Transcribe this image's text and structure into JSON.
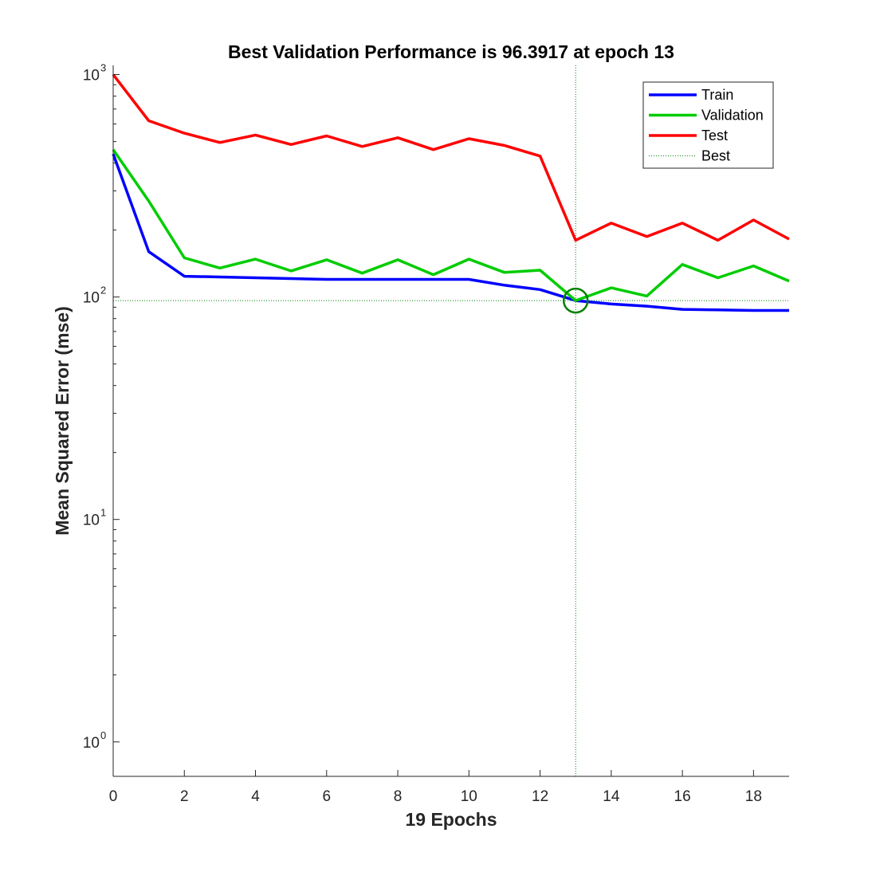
{
  "chart_data": {
    "type": "line",
    "title": "Best Validation Performance is 96.3917 at epoch 13",
    "xlabel": "19 Epochs",
    "ylabel": "Mean Squared Error  (mse)",
    "y_scale": "log",
    "xlim": [
      0,
      19
    ],
    "ylim": [
      0.7,
      1100
    ],
    "x_ticks": [
      0,
      2,
      4,
      6,
      8,
      10,
      12,
      14,
      16,
      18
    ],
    "y_ticks": [
      {
        "value": 1,
        "base": "10",
        "exp": "0"
      },
      {
        "value": 10,
        "base": "10",
        "exp": "1"
      },
      {
        "value": 100,
        "base": "10",
        "exp": "2"
      },
      {
        "value": 1000,
        "base": "10",
        "exp": "3"
      }
    ],
    "grid": false,
    "legend_position": "top-right",
    "x": [
      0,
      1,
      2,
      3,
      4,
      5,
      6,
      7,
      8,
      9,
      10,
      11,
      12,
      13,
      14,
      15,
      16,
      17,
      18,
      19
    ],
    "series": [
      {
        "name": "Train",
        "color": "#0000ff",
        "values": [
          440,
          160,
          124,
          123,
          122,
          121,
          120,
          120,
          120,
          120,
          120,
          113,
          108,
          96.4,
          93,
          91,
          88,
          87.5,
          87,
          87
        ]
      },
      {
        "name": "Validation",
        "color": "#00cc00",
        "values": [
          460,
          270,
          150,
          135,
          148,
          131,
          147,
          128,
          147,
          126,
          148,
          129,
          132,
          96.39,
          110,
          101,
          140,
          122,
          138,
          118
        ]
      },
      {
        "name": "Test",
        "color": "#ff0000",
        "values": [
          1000,
          620,
          545,
          495,
          535,
          485,
          530,
          475,
          520,
          460,
          515,
          480,
          430,
          180,
          215,
          187,
          215,
          180,
          222,
          182
        ]
      }
    ],
    "best": {
      "name": "Best",
      "epoch": 13,
      "value": 96.3917,
      "color": "#008000"
    }
  }
}
